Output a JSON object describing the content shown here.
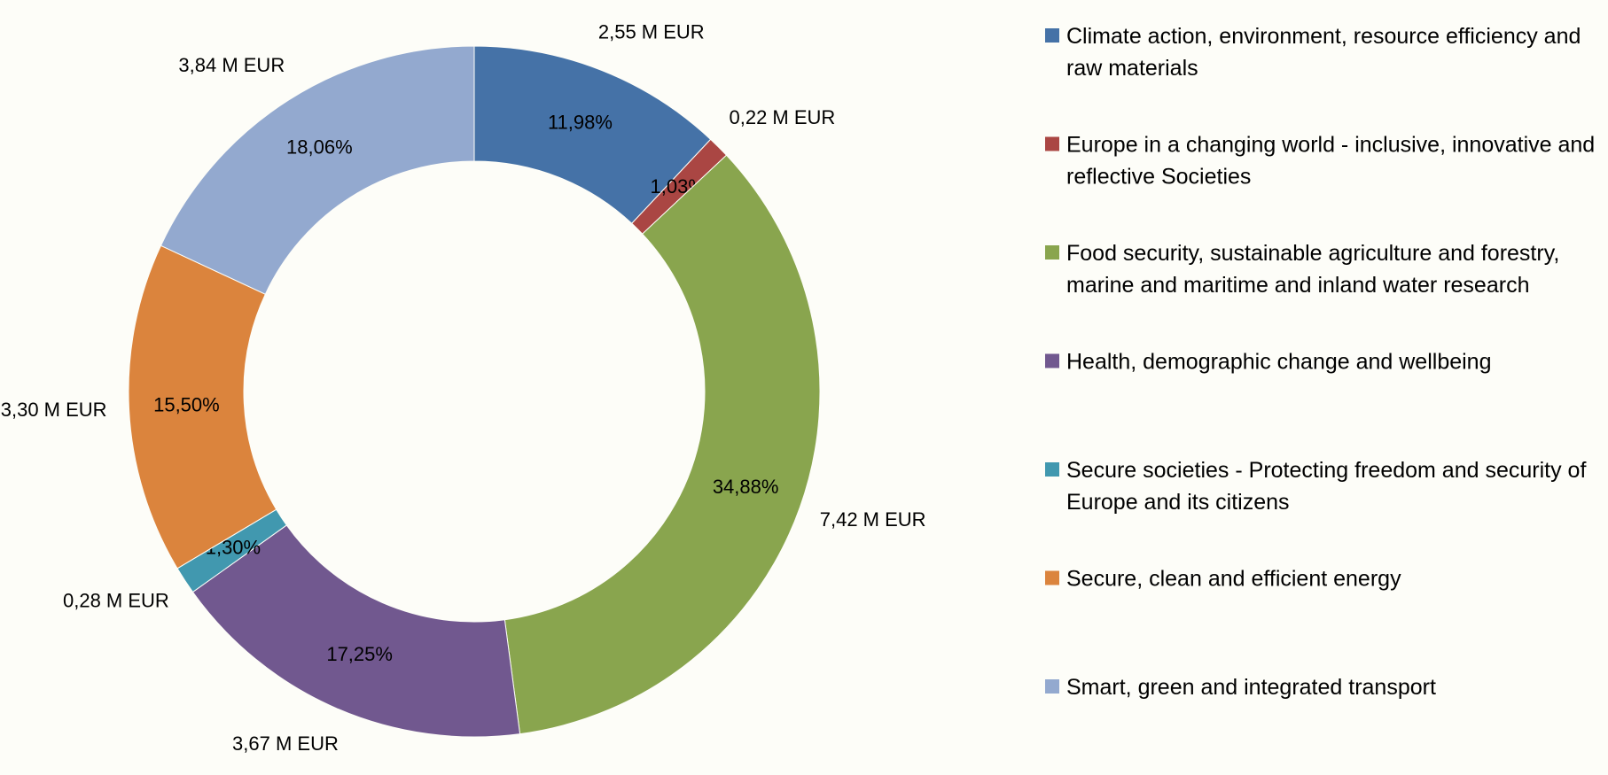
{
  "chart_data": {
    "type": "donut",
    "categories": [
      "Climate action, environment, resource efficiency and raw materials",
      "Europe in a changing world - inclusive, innovative and reflective Societies",
      "Food security, sustainable agriculture and forestry, marine and maritime and inland water research",
      "Health, demographic change and wellbeing",
      "Secure societies - Protecting freedom and security of Europe and its citizens",
      "Secure, clean and efficient energy",
      "Smart, green and integrated transport"
    ],
    "values": [
      11.98,
      1.03,
      34.88,
      17.25,
      1.3,
      15.5,
      18.06
    ],
    "value_labels": [
      "11,98%",
      "1,03%",
      "34,88%",
      "17,25%",
      "1,30%",
      "15,50%",
      "18,06%"
    ],
    "amounts": [
      2.55,
      0.22,
      7.42,
      3.67,
      0.28,
      3.3,
      3.84
    ],
    "amount_labels": [
      "2,55 M EUR",
      "0,22 M EUR",
      "7,42 M EUR",
      "3,67 M EUR",
      "0,28 M EUR",
      "3,30 M EUR",
      "3,84 M EUR"
    ],
    "colors": [
      "#4572a7",
      "#aa4643",
      "#89a54e",
      "#71588f",
      "#4198af",
      "#db843d",
      "#93a9cf"
    ],
    "legend": "right"
  }
}
